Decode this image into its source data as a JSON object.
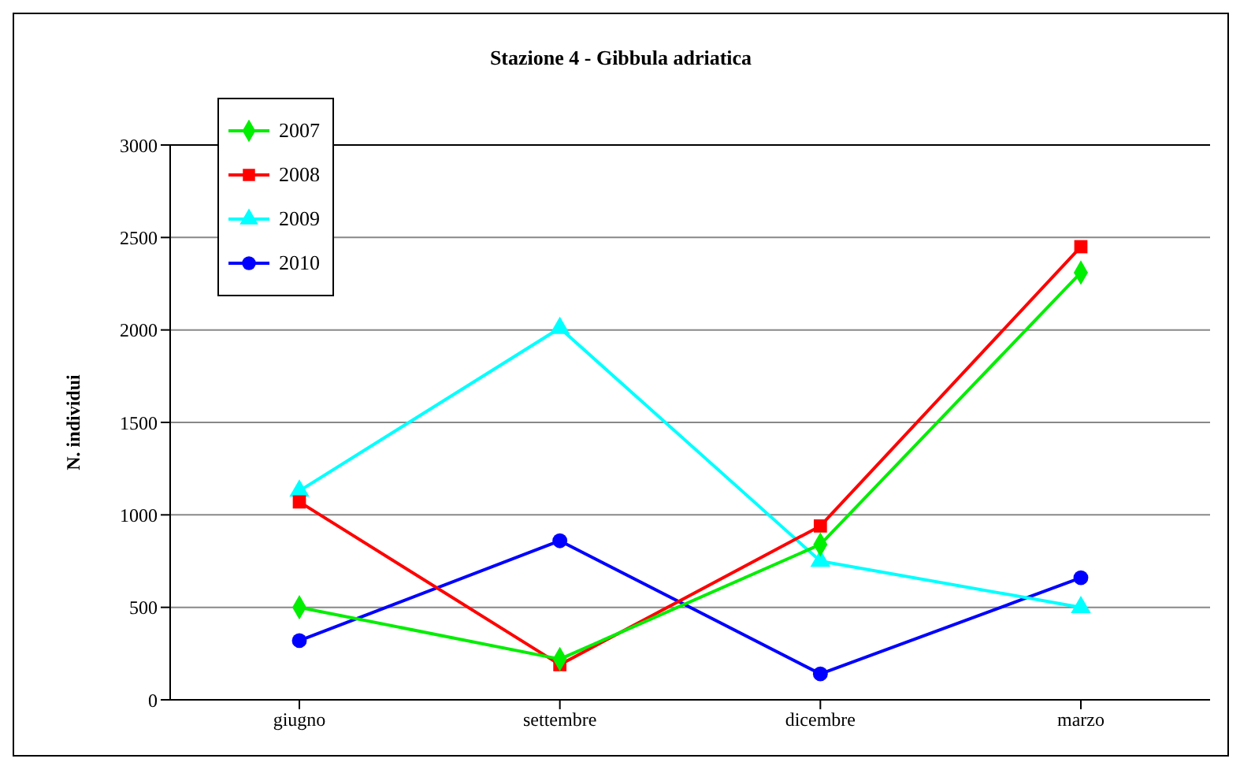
{
  "chart_data": {
    "type": "line",
    "title": "Stazione 4 - Gibbula adriatica",
    "ylabel": "N. individui",
    "categories": [
      "giugno",
      "settembre",
      "dicembre",
      "marzo"
    ],
    "series": [
      {
        "name": "2007",
        "color": "#00ee00",
        "marker": "diamond",
        "values": [
          500,
          220,
          840,
          2310
        ]
      },
      {
        "name": "2008",
        "color": "#ff0000",
        "marker": "square",
        "values": [
          1070,
          190,
          940,
          2450
        ]
      },
      {
        "name": "2009",
        "color": "#00ffff",
        "marker": "triangle",
        "values": [
          1130,
          2010,
          750,
          500
        ]
      },
      {
        "name": "2010",
        "color": "#0000ff",
        "marker": "circle",
        "values": [
          320,
          860,
          140,
          660
        ]
      }
    ],
    "ylim": [
      0,
      3000
    ],
    "yticks": [
      0,
      500,
      1000,
      1500,
      2000,
      2500,
      3000
    ],
    "grid": "y",
    "legend": "top left",
    "line_style": "solid"
  }
}
